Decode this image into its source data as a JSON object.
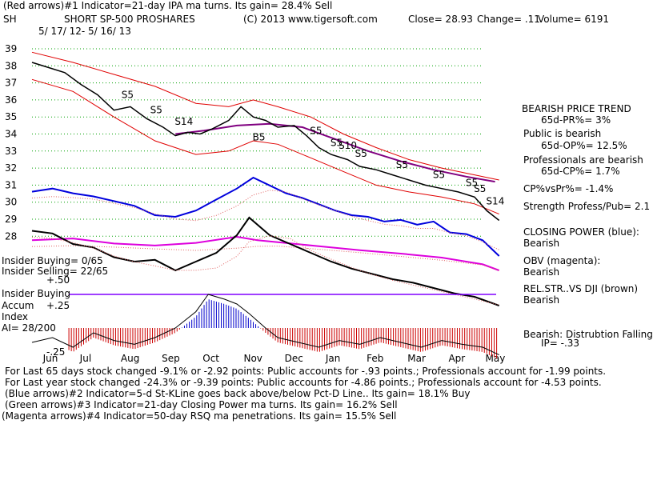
{
  "header": {
    "line1": "(Red arrows)#1 Indicator=21-day IPA ma turns. Its gain= 28.4% Sell",
    "symbol": "SH",
    "name": "SHORT SP-500 PROSHARES",
    "copyright": "(C) 2013 www.tigersoft.com",
    "close": "Close= 28.93",
    "change": "Change= .11",
    "volume": "Volume= 6191",
    "date_range": "5/ 17/ 12- 5/ 16/ 13"
  },
  "right_panel": {
    "trend_title": "BEARISH PRICE TREND",
    "pr": "65d-PR%= 3%",
    "public": "Public is bearish",
    "op": "65d-OP%= 12.5%",
    "professionals": "Professionals are bearish",
    "cp": "65d-CP%= 1.7%",
    "cpvspr": "CP%vsPr%= -1.4%",
    "strength": "Strength Profess/Pub= 2.1",
    "closing_power_label": "CLOSING POWER (blue):",
    "closing_power_value": "Bearish",
    "obv_label": "OBV (magenta):",
    "obv_value": "Bearish",
    "relstr_label": "REL.STR..VS DJI (brown)",
    "relstr_value": "Bearish",
    "distribution": "Bearish: Distrubtion Falling",
    "ip": "IP= -.33"
  },
  "left_panel": {
    "insider_buying": "Insider Buying= 0/65",
    "insider_selling": "Insider Selling= 22/65",
    "insider_label": "Insider Buying",
    "accum_label": "Accum",
    "index_label": "Index",
    "ai": "AI= 28/200",
    "lvl_p50": "+.50",
    "lvl_p25": "+.25",
    "lvl_m25": "-.25"
  },
  "footer": {
    "line1": "For Last 65 days stock changed -9.1% or -2.92 points:  Public accounts for -.93 points.;  Professionals account for -1.99 points.",
    "line2": "For Last year stock changed -24.3% or -9.39 points:  Public accounts for -4.86 points.;  Professionals account for -4.53 points.",
    "line3": "(Blue arrows)#2 Indicator=5-d St-KLine goes back above/below Pct-D Line.. Its gain= 18.1% Buy",
    "line4": "(Green arrows)#3 Indicator=21-day Closing Power ma turns. Its gain= 16.2% Sell",
    "line5": "(Magenta arrows)#4 Indicator=50-day RSQ ma penetrations. Its gain= 15.5% Sell"
  },
  "colors": {
    "price": "#000000",
    "band": "#e00000",
    "ma": "#800080",
    "closing_power": "#0000dd",
    "obv": "#dd00dd",
    "relstr": "#000000",
    "grid": "#00a000",
    "accum_pos": "#0000cc",
    "accum_neg": "#cc0000",
    "insider_line": "#8000ff"
  },
  "chart_data": {
    "type": "line",
    "title": "SHORT SP-500 PROSHARES (SH) 5/17/12 - 5/16/13",
    "ylim": [
      28,
      39
    ],
    "y_ticks": [
      "39",
      "38",
      "37",
      "36",
      "35",
      "34",
      "33",
      "32",
      "31",
      "30",
      "29",
      "28"
    ],
    "x_tick_labels": [
      "Jun",
      "Jul",
      "Aug",
      "Sep",
      "Oct",
      "Nov",
      "Dec",
      "Jan",
      "Feb",
      "Mar",
      "Apr",
      "May"
    ],
    "x_months": [
      0.5,
      1.4,
      2.4,
      3.4,
      4.4,
      5.4,
      6.4,
      7.4,
      8.4,
      9.4,
      10.4,
      11.3
    ],
    "series": [
      {
        "name": "Price (SH close)",
        "months": [
          0,
          0.4,
          0.8,
          1.2,
          1.6,
          2.0,
          2.4,
          2.8,
          3.2,
          3.5,
          3.8,
          4.1,
          4.4,
          4.8,
          5.1,
          5.4,
          5.7,
          6.0,
          6.4,
          6.7,
          7.0,
          7.3,
          7.7,
          8.0,
          8.4,
          8.8,
          9.2,
          9.6,
          10.0,
          10.4,
          10.8,
          11.1,
          11.4
        ],
        "values": [
          38.2,
          37.9,
          37.6,
          36.9,
          36.3,
          35.4,
          35.6,
          34.9,
          34.4,
          33.9,
          34.1,
          34.0,
          34.3,
          34.8,
          35.6,
          35.0,
          34.8,
          34.4,
          34.5,
          33.9,
          33.2,
          32.8,
          32.5,
          32.1,
          31.9,
          31.6,
          31.3,
          31.0,
          30.8,
          30.6,
          30.3,
          29.5,
          28.93
        ]
      },
      {
        "name": "Upper band",
        "months": [
          0,
          1.0,
          2.0,
          3.0,
          4.0,
          4.8,
          5.4,
          6.0,
          6.8,
          7.6,
          8.4,
          9.2,
          10.0,
          10.8,
          11.4
        ],
        "values": [
          38.8,
          38.2,
          37.5,
          36.8,
          35.8,
          35.6,
          36.0,
          35.6,
          35.0,
          34.0,
          33.2,
          32.5,
          32.0,
          31.6,
          31.3
        ]
      },
      {
        "name": "Lower band",
        "months": [
          0,
          1.0,
          2.0,
          3.0,
          4.0,
          4.8,
          5.4,
          6.0,
          6.8,
          7.6,
          8.4,
          9.2,
          10.0,
          10.8,
          11.4
        ],
        "values": [
          37.2,
          36.5,
          35.0,
          33.6,
          32.8,
          33.0,
          33.6,
          33.4,
          32.6,
          31.8,
          31.0,
          30.6,
          30.3,
          29.9,
          29.3
        ]
      },
      {
        "name": "Moving average (purple)",
        "months": [
          3.5,
          4.2,
          5.0,
          5.8,
          6.6,
          7.4,
          8.2,
          9.0,
          9.8,
          10.6,
          11.3
        ],
        "values": [
          34.0,
          34.2,
          34.5,
          34.6,
          34.4,
          33.7,
          33.0,
          32.4,
          31.9,
          31.5,
          31.2
        ]
      }
    ],
    "indicators": [
      {
        "name": "Closing Power (blue)",
        "months": [
          0,
          0.5,
          1.0,
          1.5,
          2.0,
          2.5,
          3.0,
          3.5,
          4.0,
          4.5,
          5.0,
          5.4,
          5.8,
          6.2,
          6.6,
          7.0,
          7.4,
          7.8,
          8.2,
          8.6,
          9.0,
          9.4,
          9.8,
          10.2,
          10.6,
          11.0,
          11.4
        ],
        "values": [
          0.82,
          0.86,
          0.8,
          0.76,
          0.7,
          0.64,
          0.52,
          0.5,
          0.58,
          0.72,
          0.86,
          1.0,
          0.9,
          0.8,
          0.74,
          0.66,
          0.58,
          0.52,
          0.5,
          0.44,
          0.46,
          0.4,
          0.44,
          0.3,
          0.28,
          0.2,
          0.0
        ]
      },
      {
        "name": "OBV (magenta)",
        "months": [
          0,
          1.0,
          2.0,
          3.0,
          4.0,
          5.0,
          5.5,
          6.0,
          7.0,
          8.0,
          9.0,
          10.0,
          11.0,
          11.4
        ],
        "values": [
          0.9,
          0.95,
          0.8,
          0.74,
          0.82,
          1.0,
          0.9,
          0.84,
          0.72,
          0.6,
          0.5,
          0.38,
          0.18,
          0.0
        ]
      },
      {
        "name": "Rel.Str vs DJI (brown/black)",
        "months": [
          0,
          0.5,
          1.0,
          1.5,
          2.0,
          2.5,
          3.0,
          3.5,
          4.0,
          4.5,
          5.0,
          5.3,
          5.8,
          6.3,
          6.8,
          7.3,
          7.8,
          8.3,
          8.8,
          9.3,
          9.8,
          10.3,
          10.8,
          11.4
        ],
        "values": [
          0.85,
          0.82,
          0.7,
          0.66,
          0.55,
          0.5,
          0.52,
          0.4,
          0.5,
          0.6,
          0.8,
          1.0,
          0.8,
          0.7,
          0.6,
          0.5,
          0.42,
          0.36,
          0.3,
          0.26,
          0.2,
          0.14,
          0.1,
          0.0
        ]
      },
      {
        "name": "Accumulation Index",
        "months": [
          0,
          0.5,
          1.0,
          1.5,
          2.0,
          2.5,
          3.0,
          3.5,
          4.0,
          4.3,
          4.7,
          5.0,
          5.3,
          5.7,
          6.0,
          6.5,
          7.0,
          7.5,
          8.0,
          8.5,
          9.0,
          9.5,
          10.0,
          10.5,
          11.0,
          11.4
        ],
        "values": [
          -0.2,
          -0.15,
          -0.25,
          -0.1,
          -0.18,
          -0.22,
          -0.15,
          -0.05,
          0.12,
          0.3,
          0.25,
          0.2,
          0.1,
          -0.05,
          -0.15,
          -0.2,
          -0.25,
          -0.18,
          -0.22,
          -0.15,
          -0.2,
          -0.25,
          -0.18,
          -0.22,
          -0.25,
          -0.33
        ]
      }
    ],
    "signals": [
      {
        "label": "S5",
        "month": 2.3
      },
      {
        "label": "S5",
        "month": 3.0
      },
      {
        "label": "S14",
        "month": 3.6
      },
      {
        "label": "B5",
        "month": 5.5
      },
      {
        "label": "S5",
        "month": 6.9
      },
      {
        "label": "S5",
        "month": 7.4
      },
      {
        "label": "S10",
        "month": 7.6
      },
      {
        "label": "S5",
        "month": 8.0
      },
      {
        "label": "S5",
        "month": 9.0
      },
      {
        "label": "S5",
        "month": 9.9
      },
      {
        "label": "S5",
        "month": 10.7
      },
      {
        "label": "S5",
        "month": 10.9
      },
      {
        "label": "S14",
        "month": 11.2
      }
    ]
  }
}
